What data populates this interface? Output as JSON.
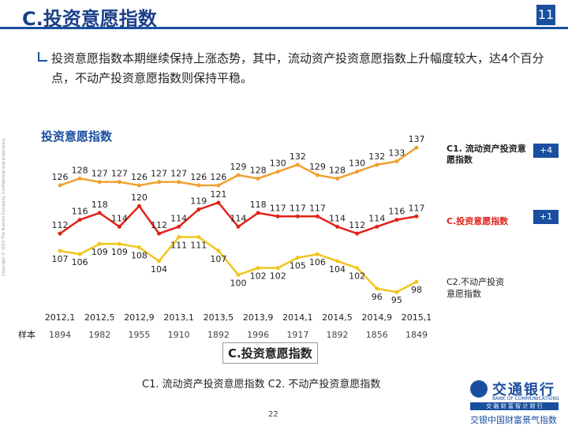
{
  "header": {
    "title": "C.投资意愿指数",
    "page_number": "11"
  },
  "bullet": "投资意愿指数本期继续保持上涨态势，其中，流动资产投资意愿指数上升幅度较大，达4个百分点，不动产投资意愿指数则保持平稳。",
  "chart_data": {
    "type": "line",
    "title": "投资意愿指数",
    "categories": [
      "2012,1",
      null,
      "2012,5",
      null,
      "2012,9",
      null,
      "2013,1",
      null,
      "2013,5",
      null,
      "2013,9",
      null,
      "2014,1",
      null,
      "2014,5",
      null,
      "2014,9",
      null,
      "2015,1"
    ],
    "series": [
      {
        "name": "C1. 流动资产投资意愿指数",
        "color": "#f0a030",
        "change": "+4",
        "values": [
          126,
          128,
          127,
          127,
          126,
          127,
          127,
          126,
          126,
          129,
          128,
          130,
          132,
          129,
          128,
          130,
          132,
          133,
          137
        ]
      },
      {
        "name": "C.投资意愿指数",
        "color": "#e2231a",
        "change": "+1",
        "values": [
          112,
          116,
          118,
          114,
          120,
          112,
          114,
          119,
          121,
          114,
          118,
          117,
          117,
          117,
          114,
          112,
          114,
          116,
          117
        ]
      },
      {
        "name": "C2.不动产投资意愿指数",
        "color": "#f2c41c",
        "values": [
          107,
          106,
          109,
          109,
          108,
          104,
          111,
          111,
          107,
          100,
          102,
          102,
          105,
          106,
          104,
          102,
          96,
          95,
          98
        ]
      }
    ],
    "ylim": [
      90,
      140
    ],
    "sample_label": "样本",
    "sample_values": [
      1894,
      1982,
      1955,
      1910,
      1892,
      1996,
      1917,
      1892,
      1856,
      1849
    ]
  },
  "footer": {
    "caption": "C.投资意愿指数",
    "legend_note": "C1. 流动资产投资意愿指数 C2. 不动产投资意愿指数",
    "page": "22",
    "bank_cn": "交通银行",
    "bank_en": "BANK OF COMMUNICATIONS",
    "bank_slogan": "交 融 财 富 智 计 财 行",
    "index_name": "交银中国财富景气指数",
    "copyright": "Copyright © 2013 The Nielsen Company. Confidential and proprietary."
  }
}
